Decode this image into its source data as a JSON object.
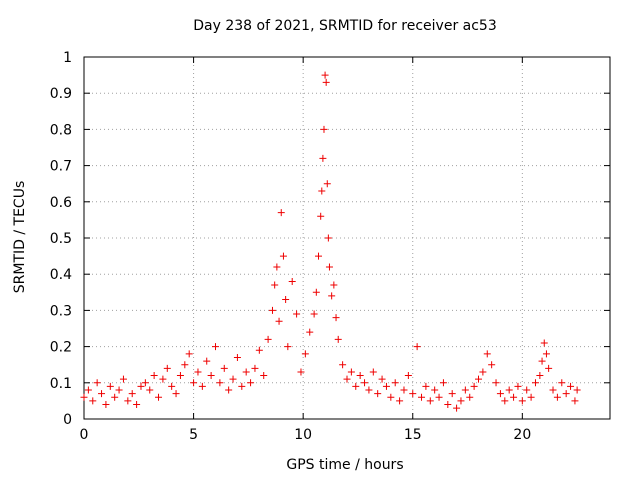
{
  "chart_data": {
    "type": "scatter",
    "title": "Day 238 of 2021, SRMTID for receiver ac53",
    "xlabel": "GPS time / hours",
    "ylabel": "SRMTID / TECUs",
    "xlim": [
      0,
      24
    ],
    "ylim": [
      0,
      1
    ],
    "grid": true,
    "marker": "+",
    "series_color": "#ee0000",
    "x_ticks": [
      0,
      5,
      10,
      15,
      20
    ],
    "x_tick_labels": [
      "0",
      "5",
      "10",
      "15",
      "20"
    ],
    "y_ticks": [
      0,
      0.1,
      0.2,
      0.3,
      0.4,
      0.5,
      0.6,
      0.7,
      0.8,
      0.9,
      1
    ],
    "y_tick_labels": [
      "0",
      "0.1",
      "0.2",
      "0.3",
      "0.4",
      "0.5",
      "0.6",
      "0.7",
      "0.8",
      "0.9",
      "1"
    ],
    "series": [
      {
        "name": "SRMTID",
        "points": [
          [
            0.0,
            0.06
          ],
          [
            0.2,
            0.08
          ],
          [
            0.4,
            0.05
          ],
          [
            0.6,
            0.1
          ],
          [
            0.8,
            0.07
          ],
          [
            1.0,
            0.04
          ],
          [
            1.2,
            0.09
          ],
          [
            1.4,
            0.06
          ],
          [
            1.6,
            0.08
          ],
          [
            1.8,
            0.11
          ],
          [
            2.0,
            0.05
          ],
          [
            2.2,
            0.07
          ],
          [
            2.4,
            0.04
          ],
          [
            2.6,
            0.09
          ],
          [
            2.8,
            0.1
          ],
          [
            3.0,
            0.08
          ],
          [
            3.2,
            0.12
          ],
          [
            3.4,
            0.06
          ],
          [
            3.6,
            0.11
          ],
          [
            3.8,
            0.14
          ],
          [
            4.0,
            0.09
          ],
          [
            4.2,
            0.07
          ],
          [
            4.4,
            0.12
          ],
          [
            4.6,
            0.15
          ],
          [
            4.8,
            0.18
          ],
          [
            5.0,
            0.1
          ],
          [
            5.2,
            0.13
          ],
          [
            5.4,
            0.09
          ],
          [
            5.6,
            0.16
          ],
          [
            5.8,
            0.12
          ],
          [
            6.0,
            0.2
          ],
          [
            6.2,
            0.1
          ],
          [
            6.4,
            0.14
          ],
          [
            6.6,
            0.08
          ],
          [
            6.8,
            0.11
          ],
          [
            7.0,
            0.17
          ],
          [
            7.2,
            0.09
          ],
          [
            7.4,
            0.13
          ],
          [
            7.6,
            0.1
          ],
          [
            7.8,
            0.14
          ],
          [
            8.0,
            0.19
          ],
          [
            8.2,
            0.12
          ],
          [
            8.4,
            0.22
          ],
          [
            8.6,
            0.3
          ],
          [
            8.7,
            0.37
          ],
          [
            8.8,
            0.42
          ],
          [
            8.9,
            0.27
          ],
          [
            9.0,
            0.57
          ],
          [
            9.1,
            0.45
          ],
          [
            9.2,
            0.33
          ],
          [
            9.3,
            0.2
          ],
          [
            9.5,
            0.38
          ],
          [
            9.7,
            0.29
          ],
          [
            9.9,
            0.13
          ],
          [
            10.1,
            0.18
          ],
          [
            10.3,
            0.24
          ],
          [
            10.5,
            0.29
          ],
          [
            10.6,
            0.35
          ],
          [
            10.7,
            0.45
          ],
          [
            10.8,
            0.56
          ],
          [
            10.85,
            0.63
          ],
          [
            10.9,
            0.72
          ],
          [
            10.95,
            0.8
          ],
          [
            11.0,
            0.95
          ],
          [
            11.05,
            0.93
          ],
          [
            11.1,
            0.65
          ],
          [
            11.15,
            0.5
          ],
          [
            11.2,
            0.42
          ],
          [
            11.3,
            0.34
          ],
          [
            11.4,
            0.37
          ],
          [
            11.5,
            0.28
          ],
          [
            11.6,
            0.22
          ],
          [
            11.8,
            0.15
          ],
          [
            12.0,
            0.11
          ],
          [
            12.2,
            0.13
          ],
          [
            12.4,
            0.09
          ],
          [
            12.6,
            0.12
          ],
          [
            12.8,
            0.1
          ],
          [
            13.0,
            0.08
          ],
          [
            13.2,
            0.13
          ],
          [
            13.4,
            0.07
          ],
          [
            13.6,
            0.11
          ],
          [
            13.8,
            0.09
          ],
          [
            14.0,
            0.06
          ],
          [
            14.2,
            0.1
          ],
          [
            14.4,
            0.05
          ],
          [
            14.6,
            0.08
          ],
          [
            14.8,
            0.12
          ],
          [
            15.0,
            0.07
          ],
          [
            15.2,
            0.2
          ],
          [
            15.4,
            0.06
          ],
          [
            15.6,
            0.09
          ],
          [
            15.8,
            0.05
          ],
          [
            16.0,
            0.08
          ],
          [
            16.2,
            0.06
          ],
          [
            16.4,
            0.1
          ],
          [
            16.6,
            0.04
          ],
          [
            16.8,
            0.07
          ],
          [
            17.0,
            0.03
          ],
          [
            17.2,
            0.05
          ],
          [
            17.4,
            0.08
          ],
          [
            17.6,
            0.06
          ],
          [
            17.8,
            0.09
          ],
          [
            18.0,
            0.11
          ],
          [
            18.2,
            0.13
          ],
          [
            18.4,
            0.18
          ],
          [
            18.6,
            0.15
          ],
          [
            18.8,
            0.1
          ],
          [
            19.0,
            0.07
          ],
          [
            19.2,
            0.05
          ],
          [
            19.4,
            0.08
          ],
          [
            19.6,
            0.06
          ],
          [
            19.8,
            0.09
          ],
          [
            20.0,
            0.05
          ],
          [
            20.2,
            0.08
          ],
          [
            20.4,
            0.06
          ],
          [
            20.6,
            0.1
          ],
          [
            20.8,
            0.12
          ],
          [
            20.9,
            0.16
          ],
          [
            21.0,
            0.21
          ],
          [
            21.1,
            0.18
          ],
          [
            21.2,
            0.14
          ],
          [
            21.4,
            0.08
          ],
          [
            21.6,
            0.06
          ],
          [
            21.8,
            0.1
          ],
          [
            22.0,
            0.07
          ],
          [
            22.2,
            0.09
          ],
          [
            22.4,
            0.05
          ],
          [
            22.5,
            0.08
          ]
        ]
      }
    ]
  }
}
